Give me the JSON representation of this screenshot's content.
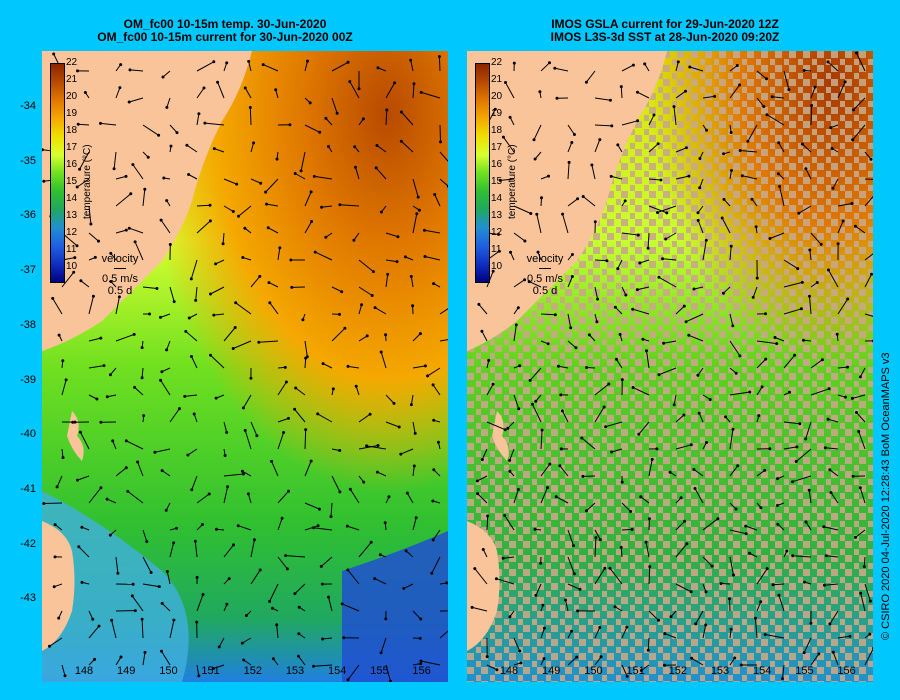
{
  "left_panel": {
    "title_line1": "OM_fc00 10-15m temp. 30-Jun-2020",
    "title_line2": "OM_fc00 10-15m current for 30-Jun-2020 00Z"
  },
  "right_panel": {
    "title_line1": "IMOS GSLA current for 29-Jun-2020 12Z",
    "title_line2": "IMOS L3S-3d SST at 28-Jun-2020 09:20Z"
  },
  "colorbar": {
    "ticks": [
      "22",
      "21",
      "20",
      "19",
      "18",
      "17",
      "16",
      "15",
      "14",
      "13",
      "12",
      "11",
      "10"
    ],
    "axis_label": "temperature (°C)",
    "colors": [
      "#8b2500",
      "#b84a00",
      "#e07800",
      "#f5a800",
      "#f0e000",
      "#d8ff30",
      "#70e020",
      "#30c030",
      "#20a860",
      "#2090d0",
      "#2060e0",
      "#1030c0",
      "#000080"
    ]
  },
  "velocity_legend": {
    "title": "velocity",
    "speed": "0.5 m/s",
    "time": "0.5 d"
  },
  "latitude_labels": [
    "-34",
    "-35",
    "-36",
    "-37",
    "-38",
    "-39",
    "-40",
    "-41",
    "-42",
    "-43"
  ],
  "longitude_labels": [
    "148",
    "149",
    "150",
    "151",
    "152",
    "153",
    "154",
    "155",
    "156"
  ],
  "copyright": "© CSIRO 2020   04-Jul-2020 12:28:43 BoM OceanMAPS v3",
  "colors": {
    "background": "#00c8ff",
    "land": "#f9c49a",
    "cloud": "#c8a888"
  }
}
